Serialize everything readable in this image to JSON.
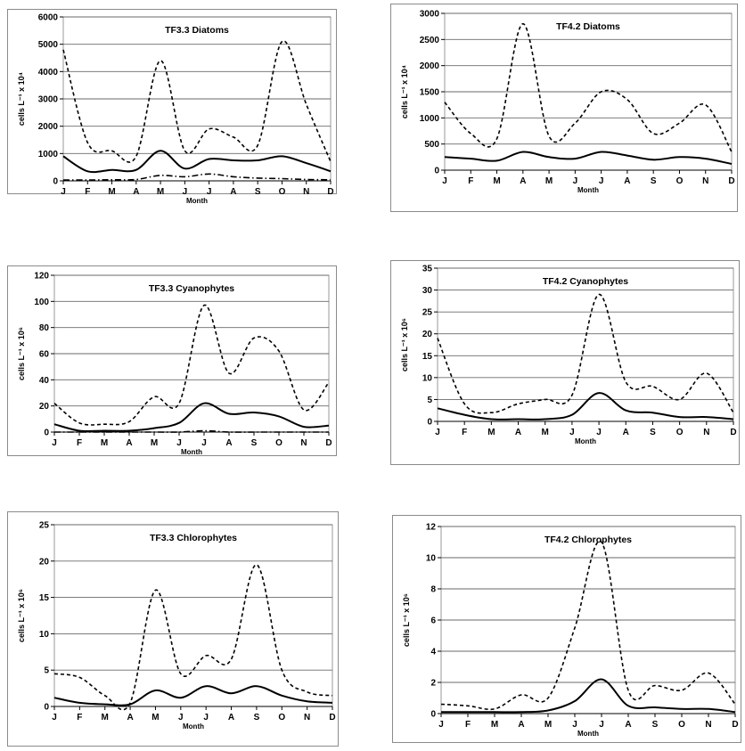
{
  "months": [
    "J",
    "F",
    "M",
    "A",
    "M",
    "J",
    "J",
    "A",
    "S",
    "O",
    "N",
    "D"
  ],
  "chart_data": [
    {
      "type": "line",
      "title": "TF3.3 Diatoms",
      "ylabel": "cells L⁻¹ x 10⁴",
      "xlabel": "Month",
      "ylim": [
        0,
        6000
      ],
      "yticks": [
        0,
        1000,
        2000,
        3000,
        4000,
        5000,
        6000
      ],
      "categories": [
        "J",
        "F",
        "M",
        "A",
        "M",
        "J",
        "J",
        "A",
        "S",
        "O",
        "N",
        "D"
      ],
      "series": [
        {
          "style": "dashed",
          "values": [
            4800,
            1400,
            1100,
            900,
            4400,
            1100,
            1900,
            1600,
            1300,
            5100,
            2800,
            700
          ]
        },
        {
          "style": "solid",
          "values": [
            900,
            350,
            400,
            400,
            1100,
            450,
            800,
            750,
            750,
            900,
            650,
            350
          ]
        },
        {
          "style": "dashdot",
          "values": [
            30,
            30,
            40,
            50,
            200,
            150,
            250,
            150,
            100,
            80,
            50,
            40
          ]
        }
      ]
    },
    {
      "type": "line",
      "title": "TF4.2 Diatoms",
      "ylabel": "cells L⁻¹ x 10⁴",
      "xlabel": "Month",
      "ylim": [
        0,
        3000
      ],
      "yticks": [
        0,
        500,
        1000,
        1500,
        2000,
        2500,
        3000
      ],
      "categories": [
        "J",
        "F",
        "M",
        "A",
        "M",
        "J",
        "J",
        "A",
        "S",
        "O",
        "N",
        "D"
      ],
      "series": [
        {
          "style": "dashed",
          "values": [
            1300,
            700,
            600,
            2800,
            650,
            900,
            1500,
            1350,
            700,
            900,
            1250,
            350
          ]
        },
        {
          "style": "solid",
          "values": [
            250,
            220,
            180,
            350,
            250,
            220,
            350,
            280,
            200,
            250,
            220,
            120
          ]
        }
      ]
    },
    {
      "type": "line",
      "title": "TF3.3 Cyanophytes",
      "ylabel": "cells L⁻¹ x 10⁶",
      "xlabel": "Month",
      "ylim": [
        0,
        120
      ],
      "yticks": [
        0,
        20,
        40,
        60,
        80,
        100,
        120
      ],
      "categories": [
        "J",
        "F",
        "M",
        "A",
        "M",
        "J",
        "J",
        "A",
        "S",
        "O",
        "N",
        "D"
      ],
      "series": [
        {
          "style": "dashed",
          "values": [
            22,
            7,
            6,
            8,
            27,
            22,
            97,
            45,
            72,
            62,
            17,
            38
          ]
        },
        {
          "style": "solid",
          "values": [
            6,
            1,
            1,
            1,
            3,
            7,
            22,
            14,
            15,
            12,
            4,
            5
          ]
        },
        {
          "style": "dashdot",
          "values": [
            0,
            0,
            0,
            0,
            0,
            0,
            1,
            0,
            0,
            0,
            0,
            0
          ]
        }
      ]
    },
    {
      "type": "line",
      "title": "TF4.2 Cyanophytes",
      "ylabel": "cells L⁻¹ x 10⁶",
      "xlabel": "Month",
      "ylim": [
        0,
        35
      ],
      "yticks": [
        0,
        5,
        10,
        15,
        20,
        25,
        30,
        35
      ],
      "categories": [
        "J",
        "F",
        "M",
        "A",
        "M",
        "J",
        "J",
        "A",
        "S",
        "O",
        "N",
        "D"
      ],
      "series": [
        {
          "style": "dashed",
          "values": [
            19,
            4,
            2,
            4,
            5,
            6,
            29,
            9,
            8,
            5,
            11,
            2
          ]
        },
        {
          "style": "solid",
          "values": [
            3,
            1.5,
            0.5,
            0.5,
            0.5,
            1.5,
            6.5,
            2.5,
            2,
            1,
            1,
            0.5
          ]
        }
      ]
    },
    {
      "type": "line",
      "title": "TF3.3 Chlorophytes",
      "ylabel": "cells L⁻¹ x 10⁶",
      "xlabel": "Month",
      "ylim": [
        0,
        25
      ],
      "yticks": [
        0,
        5,
        10,
        15,
        20,
        25
      ],
      "categories": [
        "J",
        "F",
        "M",
        "A",
        "M",
        "J",
        "J",
        "A",
        "S",
        "O",
        "N",
        "D"
      ],
      "series": [
        {
          "style": "dashed",
          "values": [
            4.5,
            4,
            1.5,
            0.5,
            16,
            4.5,
            7,
            6.5,
            19.5,
            5,
            2,
            1.5
          ]
        },
        {
          "style": "solid",
          "values": [
            1.2,
            0.5,
            0.3,
            0.3,
            2.2,
            1.2,
            2.8,
            1.8,
            2.8,
            1.5,
            0.7,
            0.5
          ]
        }
      ]
    },
    {
      "type": "line",
      "title": "TF4.2 Chlorophytes",
      "ylabel": "cells L⁻¹ x 10⁶",
      "xlabel": "Month",
      "ylim": [
        0,
        12
      ],
      "yticks": [
        0,
        2,
        4,
        6,
        8,
        10,
        12
      ],
      "categories": [
        "J",
        "F",
        "M",
        "A",
        "M",
        "J",
        "J",
        "A",
        "S",
        "O",
        "N",
        "D"
      ],
      "series": [
        {
          "style": "dashed",
          "values": [
            0.6,
            0.5,
            0.3,
            1.2,
            1.0,
            5.5,
            11,
            1.5,
            1.8,
            1.5,
            2.6,
            0.6
          ]
        },
        {
          "style": "solid",
          "values": [
            0.1,
            0.1,
            0.1,
            0.1,
            0.2,
            0.8,
            2.2,
            0.5,
            0.4,
            0.3,
            0.3,
            0.1
          ]
        }
      ]
    }
  ]
}
